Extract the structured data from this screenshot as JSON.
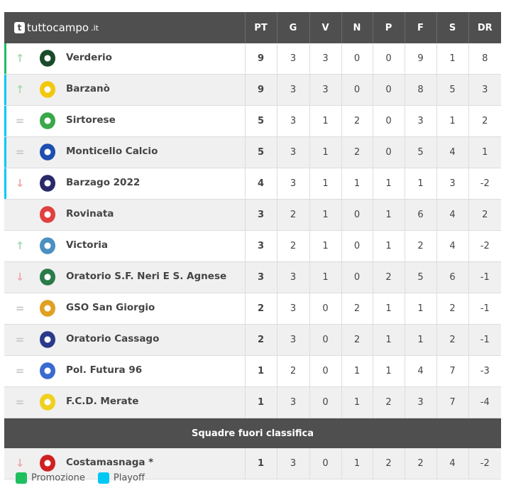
{
  "brand": {
    "name": "tuttocampo",
    "tld": ".it"
  },
  "columns": [
    "PT",
    "G",
    "V",
    "N",
    "P",
    "F",
    "S",
    "DR"
  ],
  "colors": {
    "promozione": "#1fbf5f",
    "playoff": "#00c8f5",
    "up": "#a6dbb0",
    "down": "#f0a8ae",
    "same": "#c8c8c8"
  },
  "rows": [
    {
      "team": "Verderio",
      "trend": "up",
      "zone": "promozione",
      "logo": "#1a4a2a",
      "stats": [
        "9",
        "3",
        "3",
        "0",
        "0",
        "9",
        "1",
        "8"
      ]
    },
    {
      "team": "Barzanò",
      "trend": "up",
      "zone": "playoff",
      "logo": "#f2c80f",
      "stats": [
        "9",
        "3",
        "3",
        "0",
        "0",
        "8",
        "5",
        "3"
      ]
    },
    {
      "team": "Sirtorese",
      "trend": "same",
      "zone": "playoff",
      "logo": "#3aa84a",
      "stats": [
        "5",
        "3",
        "1",
        "2",
        "0",
        "3",
        "1",
        "2"
      ]
    },
    {
      "team": "Monticello Calcio",
      "trend": "same",
      "zone": "playoff",
      "logo": "#1e4fb0",
      "stats": [
        "5",
        "3",
        "1",
        "2",
        "0",
        "5",
        "4",
        "1"
      ]
    },
    {
      "team": "Barzago 2022",
      "trend": "down",
      "zone": "playoff",
      "logo": "#2a2a6a",
      "stats": [
        "4",
        "3",
        "1",
        "1",
        "1",
        "1",
        "3",
        "-2"
      ]
    },
    {
      "team": "Rovinata",
      "trend": "none",
      "zone": "",
      "logo": "#e04040",
      "stats": [
        "3",
        "2",
        "1",
        "0",
        "1",
        "6",
        "4",
        "2"
      ]
    },
    {
      "team": "Victoria",
      "trend": "up",
      "zone": "",
      "logo": "#4a90c0",
      "stats": [
        "3",
        "2",
        "1",
        "0",
        "1",
        "2",
        "4",
        "-2"
      ]
    },
    {
      "team": "Oratorio S.F. Neri E S. Agnese",
      "trend": "down",
      "zone": "",
      "logo": "#2a7a4a",
      "stats": [
        "3",
        "3",
        "1",
        "0",
        "2",
        "5",
        "6",
        "-1"
      ]
    },
    {
      "team": "GSO San Giorgio",
      "trend": "same",
      "zone": "",
      "logo": "#e0a020",
      "stats": [
        "2",
        "3",
        "0",
        "2",
        "1",
        "1",
        "2",
        "-1"
      ]
    },
    {
      "team": "Oratorio Cassago",
      "trend": "same",
      "zone": "",
      "logo": "#2a3a8a",
      "stats": [
        "2",
        "3",
        "0",
        "2",
        "1",
        "1",
        "2",
        "-1"
      ]
    },
    {
      "team": "Pol. Futura 96",
      "trend": "same",
      "zone": "",
      "logo": "#3a6ad0",
      "stats": [
        "1",
        "2",
        "0",
        "1",
        "1",
        "4",
        "7",
        "-3"
      ]
    },
    {
      "team": "F.C.D. Merate",
      "trend": "same",
      "zone": "",
      "logo": "#f0d020",
      "stats": [
        "1",
        "3",
        "0",
        "1",
        "2",
        "3",
        "7",
        "-4"
      ]
    }
  ],
  "separator": "Squadre fuori classifica",
  "extra_rows": [
    {
      "team": "Costamasnaga *",
      "trend": "down",
      "zone": "",
      "logo": "#d02020",
      "stats": [
        "1",
        "3",
        "0",
        "1",
        "2",
        "2",
        "4",
        "-2"
      ]
    }
  ],
  "legend": [
    {
      "label": "Promozione",
      "color": "#1fbf5f"
    },
    {
      "label": "Playoff",
      "color": "#00c8f5"
    }
  ]
}
